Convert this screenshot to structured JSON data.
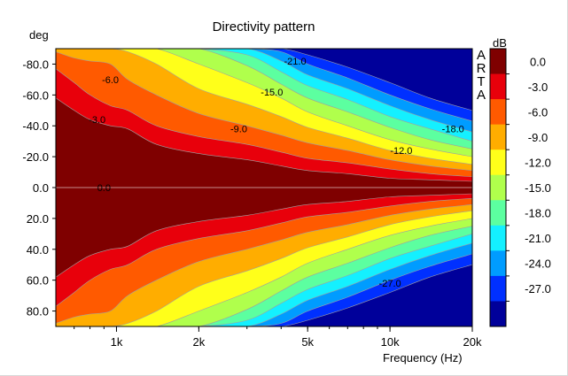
{
  "chart_data": {
    "type": "heatmap",
    "title": "Directivity pattern",
    "xlabel": "Frequency (Hz)",
    "ylabel": "deg",
    "x_scale": "log",
    "xlim": [
      600,
      20000
    ],
    "ylim": [
      90,
      -90
    ],
    "x_ticks": [
      {
        "v": 1000,
        "label": "1k"
      },
      {
        "v": 2000,
        "label": "2k"
      },
      {
        "v": 5000,
        "label": "5k"
      },
      {
        "v": 10000,
        "label": "10k"
      },
      {
        "v": 20000,
        "label": "20k"
      }
    ],
    "y_ticks": [
      {
        "v": -80,
        "label": "-80.0"
      },
      {
        "v": -60,
        "label": "-60.0"
      },
      {
        "v": -40,
        "label": "-40.0"
      },
      {
        "v": -20,
        "label": "-20.0"
      },
      {
        "v": 0,
        "label": "0.0"
      },
      {
        "v": 20,
        "label": "20.0"
      },
      {
        "v": 40,
        "label": "40.0"
      },
      {
        "v": 60,
        "label": "60.0"
      },
      {
        "v": 80,
        "label": "80.0"
      }
    ],
    "colorbar": {
      "unit": "dB",
      "levels": [
        {
          "label": "0.0",
          "color": "#7f0000"
        },
        {
          "label": "-3.0",
          "color": "#e8000b"
        },
        {
          "label": "-6.0",
          "color": "#ff5a00"
        },
        {
          "label": "-9.0",
          "color": "#ffad00"
        },
        {
          "label": "-12.0",
          "color": "#ffff1a"
        },
        {
          "label": "-15.0",
          "color": "#b0ff4c"
        },
        {
          "label": "-18.0",
          "color": "#5cffa0"
        },
        {
          "label": "-21.0",
          "color": "#14f0ff"
        },
        {
          "label": "-24.0",
          "color": "#009cff"
        },
        {
          "label": "-27.0",
          "color": "#0030ff"
        },
        {
          "label": "",
          "color": "#00009a"
        }
      ]
    },
    "contour_frequencies": [
      600,
      700,
      800,
      950,
      1100,
      1400,
      2000,
      3000,
      4000,
      5000,
      7000,
      10000,
      14000,
      20000
    ],
    "contours": [
      {
        "level": 0,
        "angles": [
          58,
          50,
          44,
          40,
          38,
          28,
          22,
          18,
          14,
          11,
          9,
          6,
          5,
          4
        ]
      },
      {
        "level": -3,
        "angles": [
          77,
          68,
          60,
          53,
          50,
          40,
          33,
          28,
          23,
          19,
          16,
          12,
          9,
          7
        ]
      },
      {
        "level": -6,
        "angles": [
          88,
          84,
          82,
          80,
          70,
          60,
          48,
          40,
          34,
          29,
          24,
          18,
          14,
          11
        ]
      },
      {
        "level": -9,
        "angles": [
          90,
          90,
          90,
          90,
          88,
          80,
          64,
          54,
          46,
          39,
          32,
          24,
          19,
          15
        ]
      },
      {
        "level": -12,
        "angles": [
          90,
          90,
          90,
          90,
          90,
          90,
          80,
          68,
          58,
          49,
          40,
          31,
          25,
          20
        ]
      },
      {
        "level": -15,
        "angles": [
          90,
          90,
          90,
          90,
          90,
          90,
          90,
          79,
          67,
          58,
          49,
          39,
          31,
          25
        ]
      },
      {
        "level": -18,
        "angles": [
          90,
          90,
          90,
          90,
          90,
          90,
          90,
          86,
          75,
          66,
          57,
          46,
          38,
          30
        ]
      },
      {
        "level": -21,
        "angles": [
          90,
          90,
          90,
          90,
          90,
          90,
          90,
          90,
          82,
          73,
          64,
          53,
          44,
          36
        ]
      },
      {
        "level": -24,
        "angles": [
          90,
          90,
          90,
          90,
          90,
          90,
          90,
          90,
          88,
          80,
          71,
          60,
          51,
          43
        ]
      },
      {
        "level": -27,
        "angles": [
          90,
          90,
          90,
          90,
          90,
          90,
          90,
          90,
          90,
          86,
          78,
          68,
          58,
          50
        ]
      }
    ],
    "annotations": [
      {
        "text": "-6.0",
        "x": 950,
        "y": -70
      },
      {
        "text": "-3.0",
        "x": 850,
        "y": -44
      },
      {
        "text": "0.0",
        "x": 900,
        "y": 0
      },
      {
        "text": "-21.0",
        "x": 4500,
        "y": -82
      },
      {
        "text": "-15.0",
        "x": 3700,
        "y": -62
      },
      {
        "text": "-9.0",
        "x": 2800,
        "y": -38
      },
      {
        "text": "-12.0",
        "x": 11000,
        "y": -24
      },
      {
        "text": "-18.0",
        "x": 17000,
        "y": -38
      },
      {
        "text": "-27.0",
        "x": 10000,
        "y": 62
      }
    ]
  },
  "brand": "ARTA"
}
